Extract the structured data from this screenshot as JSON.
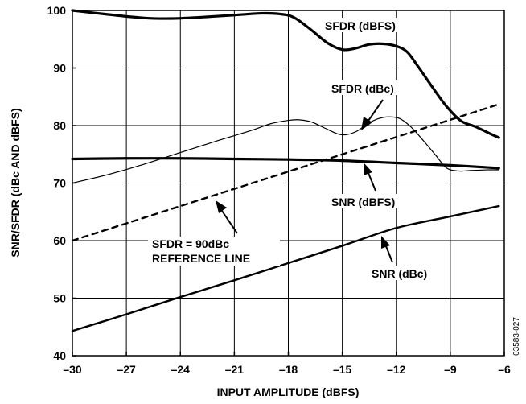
{
  "chart_data": {
    "type": "line",
    "xlabel": "INPUT AMPLITUDE (dBFS)",
    "ylabel": "SNR/SFDR (dBc AND dBFS)",
    "xlim": [
      -30,
      -6
    ],
    "ylim": [
      40,
      100
    ],
    "xticks": [
      -30,
      -27,
      -24,
      -21,
      -18,
      -15,
      -12,
      -9,
      -6
    ],
    "yticks": [
      40,
      50,
      60,
      70,
      80,
      90,
      100
    ],
    "xtick_labels": [
      "–30",
      "–27",
      "–24",
      "–21",
      "–18",
      "–15",
      "–12",
      "–9",
      "–6"
    ],
    "ytick_labels": [
      "40",
      "50",
      "60",
      "70",
      "80",
      "90",
      "100"
    ],
    "grid": true,
    "figure_id": "03583-027",
    "series": [
      {
        "name": "SFDR (dBFS)",
        "weight": "heavy",
        "dashed": false,
        "x": [
          -30,
          -28,
          -26,
          -24.5,
          -23,
          -21,
          -19.5,
          -18.5,
          -17.7,
          -16.8,
          -15.8,
          -15,
          -14.3,
          -13.5,
          -12.7,
          -12,
          -11.4,
          -10.8,
          -10,
          -9.2,
          -8.4,
          -7.6,
          -6.8,
          -6.3
        ],
        "y": [
          100,
          99.3,
          98.7,
          98.6,
          98.8,
          99.2,
          99.5,
          99.4,
          98.8,
          96.8,
          94.3,
          93.2,
          93.4,
          94.1,
          94.2,
          93.8,
          92.8,
          90.3,
          86.7,
          83.3,
          80.8,
          79.8,
          78.6,
          77.9
        ]
      },
      {
        "name": "SFDR (dBc)",
        "weight": "light",
        "dashed": false,
        "x": [
          -30,
          -28,
          -26,
          -24,
          -22,
          -20,
          -19,
          -18,
          -17.4,
          -16.7,
          -16,
          -15.3,
          -14.8,
          -14.2,
          -13.6,
          -13,
          -12.4,
          -11.8,
          -11.2,
          -10.5,
          -9.8,
          -9.2,
          -8.5,
          -7.8,
          -7,
          -6.3
        ],
        "y": [
          70,
          71.5,
          73.3,
          75.3,
          77.3,
          79.2,
          80.3,
          80.9,
          81,
          80.6,
          79.6,
          78.6,
          78.4,
          79,
          80.3,
          81.2,
          81.5,
          81.2,
          79.8,
          77.4,
          74.8,
          72.6,
          72.1,
          72.2,
          72.3,
          72.3
        ]
      },
      {
        "name": "SNR (dBFS)",
        "weight": "heavy",
        "dashed": false,
        "x": [
          -30,
          -27,
          -24,
          -21,
          -18,
          -15,
          -12,
          -9,
          -6.3
        ],
        "y": [
          74.2,
          74.3,
          74.3,
          74.2,
          74.1,
          73.9,
          73.5,
          73.1,
          72.6
        ]
      },
      {
        "name": "SNR (dBc)",
        "weight": "medium",
        "dashed": false,
        "x": [
          -30,
          -27,
          -24,
          -21,
          -18,
          -15,
          -12,
          -9,
          -6.3
        ],
        "y": [
          44.3,
          47.2,
          50.2,
          53.1,
          56.1,
          59.1,
          62.2,
          64.2,
          66
        ]
      },
      {
        "name": "SFDR = 90dBc REFERENCE LINE",
        "weight": "medium",
        "dashed": true,
        "x": [
          -30,
          -6.3
        ],
        "y": [
          60,
          83.7
        ]
      }
    ],
    "annotations": [
      {
        "key": "sfdr_dbfs",
        "text": "SFDR (dBFS)"
      },
      {
        "key": "sfdr_dbc",
        "text": "SFDR (dBc)"
      },
      {
        "key": "snr_dbfs",
        "text": "SNR (dBFS)"
      },
      {
        "key": "ref_line_1",
        "text": "SFDR = 90dBc"
      },
      {
        "key": "ref_line_2",
        "text": "REFERENCE LINE"
      },
      {
        "key": "snr_dbc",
        "text": "SNR (dBc)"
      }
    ]
  }
}
